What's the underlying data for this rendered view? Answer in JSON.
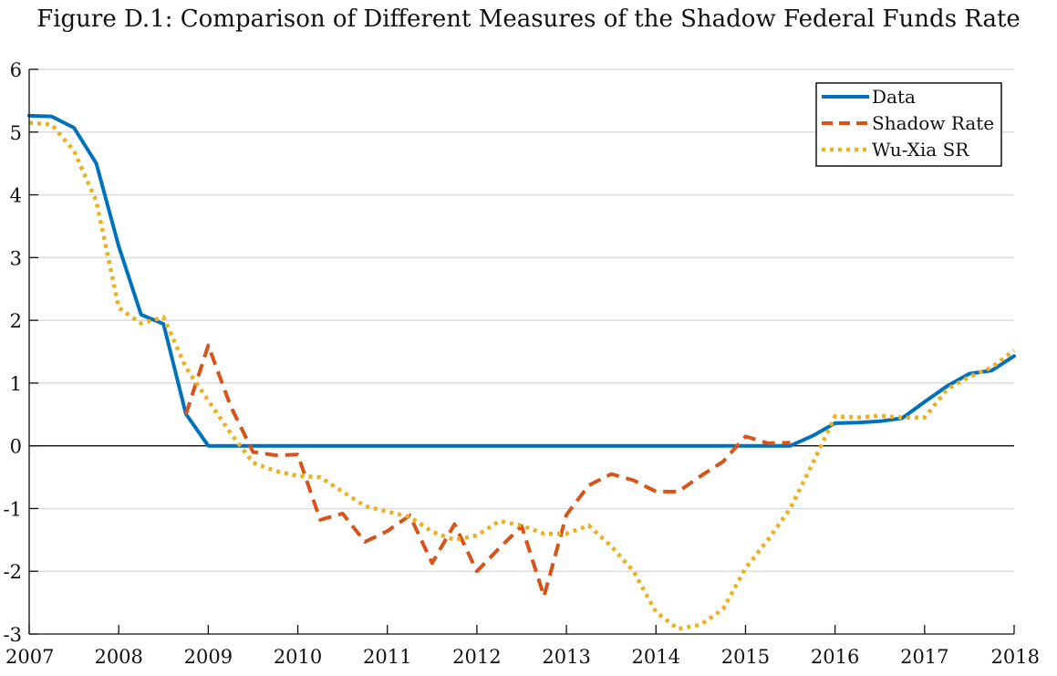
{
  "chart_data": {
    "type": "line",
    "title": "Figure D.1: Comparison of Different Measures of the Shadow Federal Funds Rate",
    "xlabel": "",
    "ylabel": "",
    "xlim": [
      2007,
      2018
    ],
    "ylim": [
      -3,
      6
    ],
    "xticks": [
      2007,
      2008,
      2009,
      2010,
      2011,
      2012,
      2013,
      2014,
      2015,
      2016,
      2017,
      2018
    ],
    "yticks": [
      -3,
      -2,
      -1,
      0,
      1,
      2,
      3,
      4,
      5,
      6
    ],
    "grid": "horizontal",
    "legend_position": "top-right",
    "series": [
      {
        "name": "Data",
        "color": "#0072BD",
        "style": "solid",
        "x": [
          2007.0,
          2007.25,
          2007.5,
          2007.75,
          2008.0,
          2008.25,
          2008.5,
          2008.75,
          2009.0,
          2009.5,
          2010.0,
          2011.0,
          2012.0,
          2013.0,
          2014.0,
          2015.0,
          2015.5,
          2015.75,
          2016.0,
          2016.25,
          2016.5,
          2016.75,
          2017.0,
          2017.25,
          2017.5,
          2017.75,
          2018.0
        ],
        "y": [
          5.26,
          5.25,
          5.07,
          4.5,
          3.18,
          2.09,
          1.94,
          0.51,
          0.0,
          0.0,
          0.0,
          0.0,
          0.0,
          0.0,
          0.0,
          0.0,
          0.0,
          0.16,
          0.36,
          0.37,
          0.39,
          0.44,
          0.7,
          0.95,
          1.15,
          1.2,
          1.43
        ]
      },
      {
        "name": "Shadow Rate",
        "color": "#D95319",
        "style": "dashed",
        "x": [
          2008.75,
          2009.0,
          2009.25,
          2009.5,
          2009.75,
          2010.0,
          2010.25,
          2010.5,
          2010.75,
          2011.0,
          2011.25,
          2011.5,
          2011.75,
          2012.0,
          2012.25,
          2012.5,
          2012.75,
          2013.0,
          2013.25,
          2013.5,
          2013.75,
          2014.0,
          2014.25,
          2014.5,
          2014.75,
          2015.0,
          2015.25,
          2015.5
        ],
        "y": [
          0.5,
          1.6,
          0.63,
          -0.1,
          -0.15,
          -0.14,
          -1.18,
          -1.08,
          -1.53,
          -1.36,
          -1.11,
          -1.87,
          -1.25,
          -2.0,
          -1.63,
          -1.28,
          -2.4,
          -1.1,
          -0.63,
          -0.45,
          -0.55,
          -0.73,
          -0.73,
          -0.48,
          -0.25,
          0.15,
          0.04,
          0.05
        ]
      },
      {
        "name": "Wu-Xia SR",
        "color": "#EDB120",
        "style": "dotted",
        "x": [
          2007.0,
          2007.25,
          2007.5,
          2007.75,
          2008.0,
          2008.25,
          2008.5,
          2008.75,
          2009.0,
          2009.25,
          2009.5,
          2009.75,
          2010.0,
          2010.25,
          2010.5,
          2010.75,
          2011.0,
          2011.25,
          2011.5,
          2011.75,
          2012.0,
          2012.25,
          2012.5,
          2012.75,
          2013.0,
          2013.25,
          2013.5,
          2013.75,
          2014.0,
          2014.25,
          2014.5,
          2014.75,
          2015.0,
          2015.25,
          2015.5,
          2015.75,
          2016.0,
          2016.25,
          2016.5,
          2016.75,
          2017.0,
          2017.25,
          2017.5,
          2017.75,
          2018.0
        ],
        "y": [
          5.15,
          5.12,
          4.7,
          3.9,
          2.2,
          1.95,
          2.05,
          1.25,
          0.72,
          0.2,
          -0.27,
          -0.4,
          -0.48,
          -0.5,
          -0.73,
          -0.96,
          -1.05,
          -1.13,
          -1.37,
          -1.5,
          -1.43,
          -1.2,
          -1.27,
          -1.4,
          -1.4,
          -1.27,
          -1.6,
          -2.0,
          -2.65,
          -2.92,
          -2.85,
          -2.6,
          -1.95,
          -1.5,
          -1.0,
          -0.28,
          0.47,
          0.45,
          0.48,
          0.45,
          0.45,
          0.9,
          1.1,
          1.25,
          1.52
        ]
      }
    ]
  }
}
